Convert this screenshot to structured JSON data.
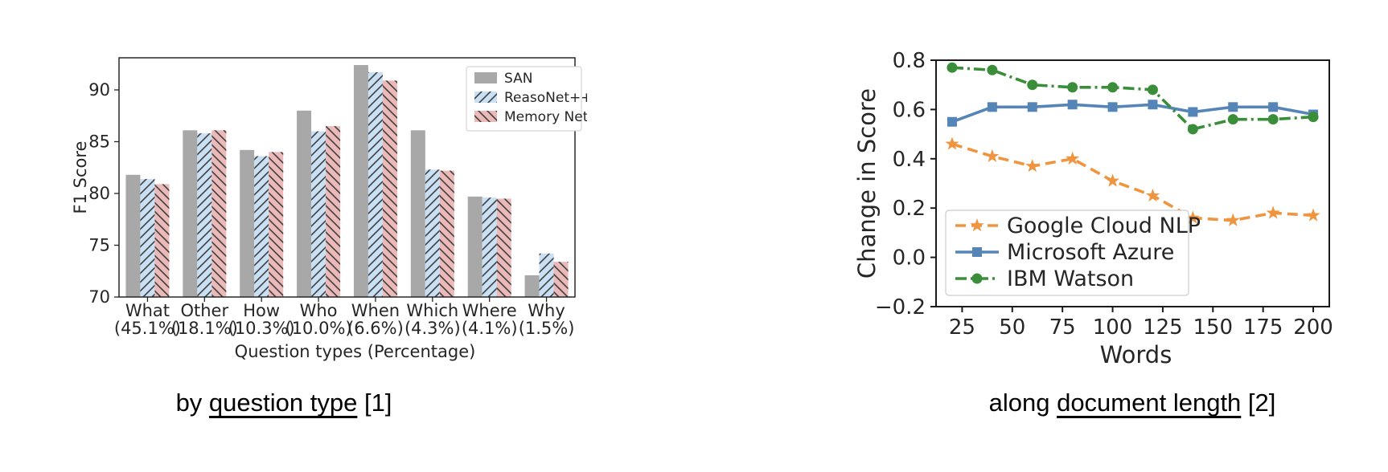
{
  "chart_data": [
    {
      "type": "bar",
      "title": "",
      "ylabel": "F1 Score",
      "xlabel": "Question types (Percentage)",
      "categories": [
        "What",
        "Other",
        "How",
        "Who",
        "When",
        "Which",
        "Where",
        "Why"
      ],
      "category_percentages": [
        "(45.1%)",
        "(18.1%)",
        "(10.3%)",
        "(10.0%)",
        "(6.6%)",
        "(4.3%)",
        "(4.1%)",
        "(1.5%)"
      ],
      "ylim": [
        70,
        93.1
      ],
      "yticks": [
        70,
        75,
        80,
        85,
        90
      ],
      "ytick_labels": [
        "70",
        "75",
        "80",
        "85",
        "90"
      ],
      "grid": false,
      "legend_position": "upper right",
      "series": [
        {
          "name": "SAN",
          "color": "#a8a8a8",
          "hatch": "none",
          "values": [
            81.8,
            86.1,
            84.2,
            88.0,
            92.4,
            86.1,
            79.7,
            72.1
          ]
        },
        {
          "name": "ReasoNet++",
          "color": "#c9dff3",
          "hatch": "/",
          "values": [
            81.4,
            85.8,
            83.6,
            86.0,
            91.7,
            82.3,
            79.6,
            74.2
          ]
        },
        {
          "name": "Memory Net",
          "color": "#ecb9b9",
          "hatch": "\\",
          "values": [
            80.9,
            86.1,
            84.0,
            86.5,
            90.9,
            82.2,
            79.5,
            73.4
          ]
        }
      ]
    },
    {
      "type": "line",
      "title": "",
      "ylabel": "Change in Score",
      "xlabel": "Words",
      "x": [
        20,
        40,
        60,
        80,
        100,
        120,
        140,
        160,
        180,
        200
      ],
      "xlim": [
        12,
        208
      ],
      "xticks": [
        25,
        50,
        75,
        100,
        125,
        150,
        175,
        200
      ],
      "xtick_labels": [
        "25",
        "50",
        "75",
        "100",
        "125",
        "150",
        "175",
        "200"
      ],
      "ylim": [
        -0.2,
        0.8
      ],
      "yticks": [
        -0.2,
        0.0,
        0.2,
        0.4,
        0.6,
        0.8
      ],
      "ytick_labels": [
        "−0.2",
        "0.0",
        "0.2",
        "0.4",
        "0.6",
        "0.8"
      ],
      "grid": false,
      "legend_position": "lower left",
      "series": [
        {
          "name": "Google Cloud NLP",
          "color": "#f0953f",
          "linestyle": "dashed",
          "marker": "star",
          "values": [
            0.46,
            0.41,
            0.37,
            0.4,
            0.31,
            0.25,
            0.16,
            0.15,
            0.18,
            0.17
          ]
        },
        {
          "name": "Microsoft Azure",
          "color": "#5585b7",
          "linestyle": "solid",
          "marker": "square",
          "values": [
            0.55,
            0.61,
            0.61,
            0.62,
            0.61,
            0.62,
            0.59,
            0.61,
            0.61,
            0.58
          ]
        },
        {
          "name": "IBM Watson",
          "color": "#3a8e3a",
          "linestyle": "dashdot",
          "marker": "circle",
          "values": [
            0.77,
            0.76,
            0.7,
            0.69,
            0.69,
            0.68,
            0.52,
            0.56,
            0.56,
            0.57
          ]
        }
      ]
    }
  ],
  "captions": {
    "left": {
      "prefix": "by ",
      "underlined": "question type",
      "suffix": " [1]"
    },
    "right": {
      "prefix": "along ",
      "underlined": "document length",
      "suffix": " [2]"
    }
  }
}
